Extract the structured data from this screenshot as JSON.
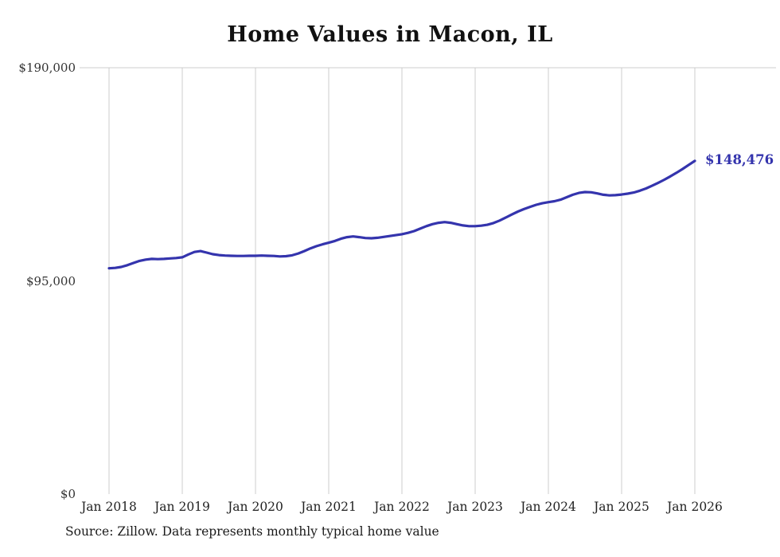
{
  "title": "Home Values in Macon, IL",
  "source_note": "Source: Zillow. Data represents monthly typical home value",
  "end_label": "$148,476",
  "colors": {
    "line": "#3434ad",
    "grid": "#cccccc",
    "axis_text": "#333333"
  },
  "y_ticks": [
    "$190,000",
    "$95,000",
    "$0"
  ],
  "x_ticks": [
    "Jan 2018",
    "Jan 2019",
    "Jan 2020",
    "Jan 2021",
    "Jan 2022",
    "Jan 2023",
    "Jan 2024",
    "Jan 2025",
    "Jan 2026"
  ],
  "chart_data": {
    "type": "line",
    "title": "Home Values in Macon, IL",
    "xlabel": "",
    "ylabel": "",
    "ylim": [
      0,
      190000
    ],
    "y_tick_values": [
      190000,
      95000,
      0
    ],
    "y_tick_labels": [
      "$190,000",
      "$95,000",
      "$0"
    ],
    "x_tick_labels": [
      "Jan 2018",
      "Jan 2019",
      "Jan 2020",
      "Jan 2021",
      "Jan 2022",
      "Jan 2023",
      "Jan 2024",
      "Jan 2025",
      "Jan 2026"
    ],
    "grid": "vertical",
    "legend": "none",
    "series_name": "Typical home value",
    "end_value": 148476,
    "end_value_label": "$148,476",
    "x": [
      "2018-01",
      "2018-02",
      "2018-03",
      "2018-04",
      "2018-05",
      "2018-06",
      "2018-07",
      "2018-08",
      "2018-09",
      "2018-10",
      "2018-11",
      "2018-12",
      "2019-01",
      "2019-02",
      "2019-03",
      "2019-04",
      "2019-05",
      "2019-06",
      "2019-07",
      "2019-08",
      "2019-09",
      "2019-10",
      "2019-11",
      "2019-12",
      "2020-01",
      "2020-02",
      "2020-03",
      "2020-04",
      "2020-05",
      "2020-06",
      "2020-07",
      "2020-08",
      "2020-09",
      "2020-10",
      "2020-11",
      "2020-12",
      "2021-01",
      "2021-02",
      "2021-03",
      "2021-04",
      "2021-05",
      "2021-06",
      "2021-07",
      "2021-08",
      "2021-09",
      "2021-10",
      "2021-11",
      "2021-12",
      "2022-01",
      "2022-02",
      "2022-03",
      "2022-04",
      "2022-05",
      "2022-06",
      "2022-07",
      "2022-08",
      "2022-09",
      "2022-10",
      "2022-11",
      "2022-12",
      "2023-01",
      "2023-02",
      "2023-03",
      "2023-04",
      "2023-05",
      "2023-06",
      "2023-07",
      "2023-08",
      "2023-09",
      "2023-10",
      "2023-11",
      "2023-12",
      "2024-01",
      "2024-02",
      "2024-03",
      "2024-04",
      "2024-05",
      "2024-06",
      "2024-07",
      "2024-08",
      "2024-09",
      "2024-10",
      "2024-11",
      "2024-12",
      "2025-01",
      "2025-02",
      "2025-03",
      "2025-04",
      "2025-05",
      "2025-06",
      "2025-07",
      "2025-08",
      "2025-09",
      "2025-10",
      "2025-11",
      "2025-12",
      "2026-01"
    ],
    "values": [
      100600,
      100800,
      101200,
      102000,
      103000,
      103900,
      104500,
      104800,
      104700,
      104800,
      105000,
      105200,
      105500,
      106800,
      107900,
      108300,
      107600,
      106900,
      106500,
      106300,
      106200,
      106100,
      106100,
      106200,
      106200,
      106300,
      106200,
      106100,
      105900,
      106000,
      106400,
      107200,
      108300,
      109500,
      110500,
      111300,
      112000,
      112800,
      113800,
      114500,
      114800,
      114500,
      114100,
      114000,
      114200,
      114600,
      115000,
      115400,
      115800,
      116400,
      117200,
      118300,
      119400,
      120300,
      120900,
      121200,
      120900,
      120300,
      119700,
      119400,
      119400,
      119600,
      120000,
      120800,
      121900,
      123200,
      124600,
      125900,
      127000,
      128000,
      128900,
      129600,
      130100,
      130500,
      131200,
      132300,
      133400,
      134200,
      134600,
      134500,
      134000,
      133400,
      133100,
      133200,
      133500,
      133900,
      134400,
      135200,
      136200,
      137400,
      138700,
      140100,
      141600,
      143200,
      144900,
      146700,
      148476
    ]
  }
}
